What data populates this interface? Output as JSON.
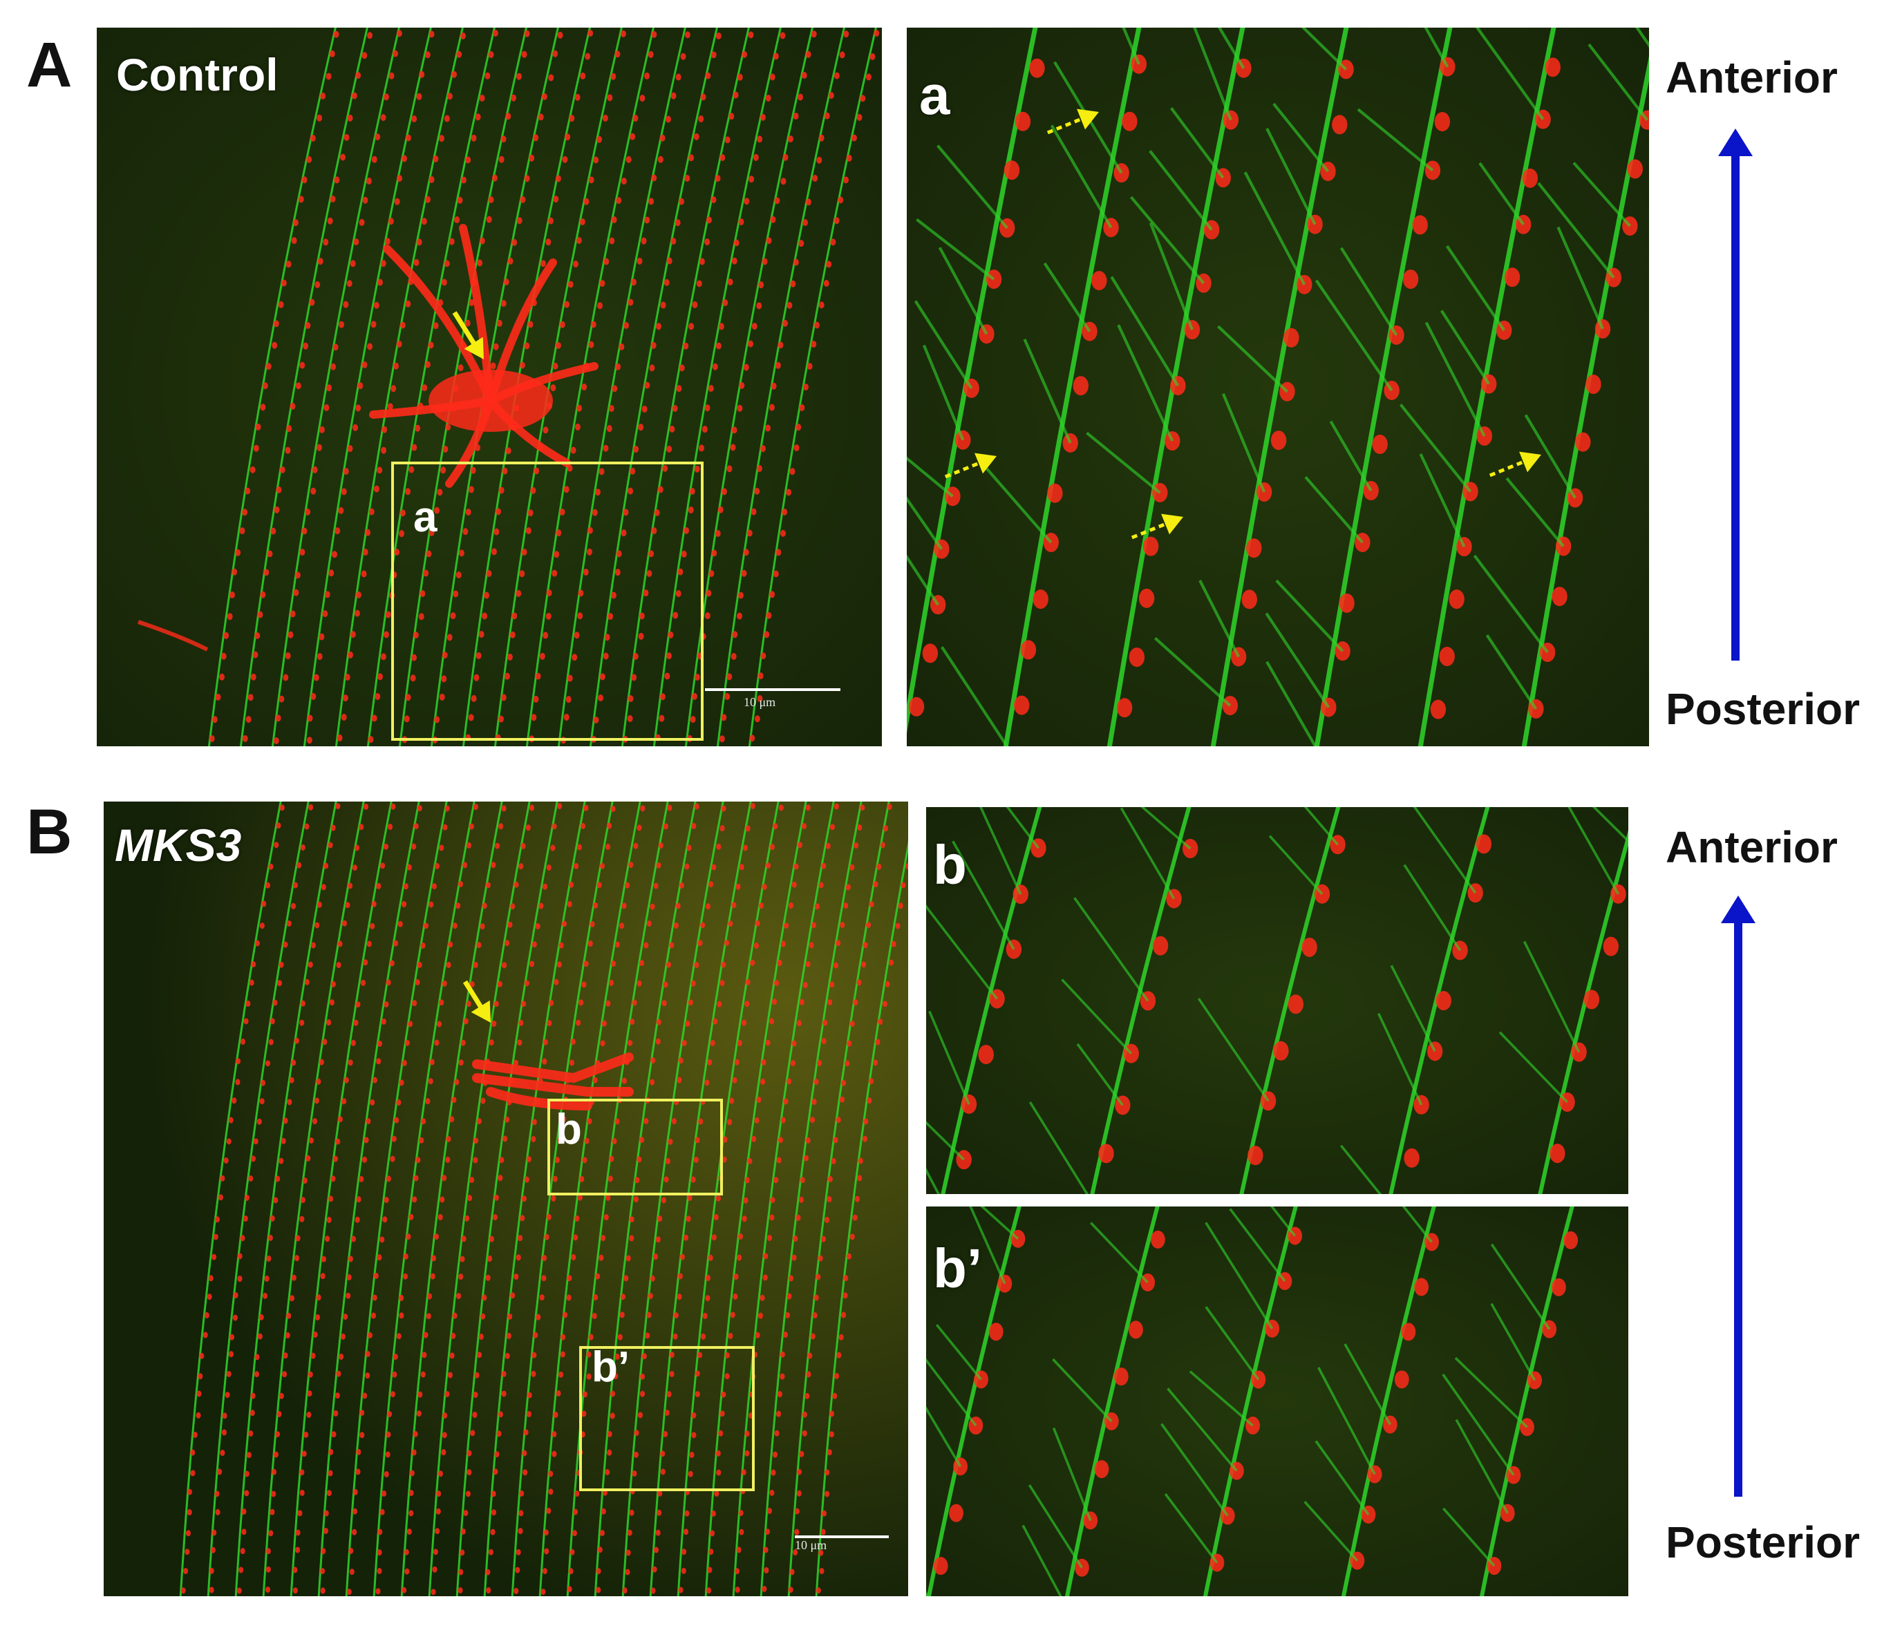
{
  "panels": {
    "A": {
      "letter": "A",
      "condition": "Control",
      "box_label": "a",
      "inset_label": "a",
      "scale_bar": "10 μm"
    },
    "B": {
      "letter": "B",
      "condition": "MKS3",
      "box_labels": [
        "b",
        "b’"
      ],
      "inset_labels": [
        "b",
        "b’"
      ],
      "scale_bar": "10 μm"
    }
  },
  "axis": {
    "top_label": "Anterior",
    "bottom_label": "Posterior",
    "arrow_color": "#0a14c8"
  },
  "colors": {
    "green_stain": "#2fd62a",
    "red_stain": "#ff2a1a",
    "box_outline": "#f0f060",
    "pointer_arrow": "#f5ee10"
  }
}
